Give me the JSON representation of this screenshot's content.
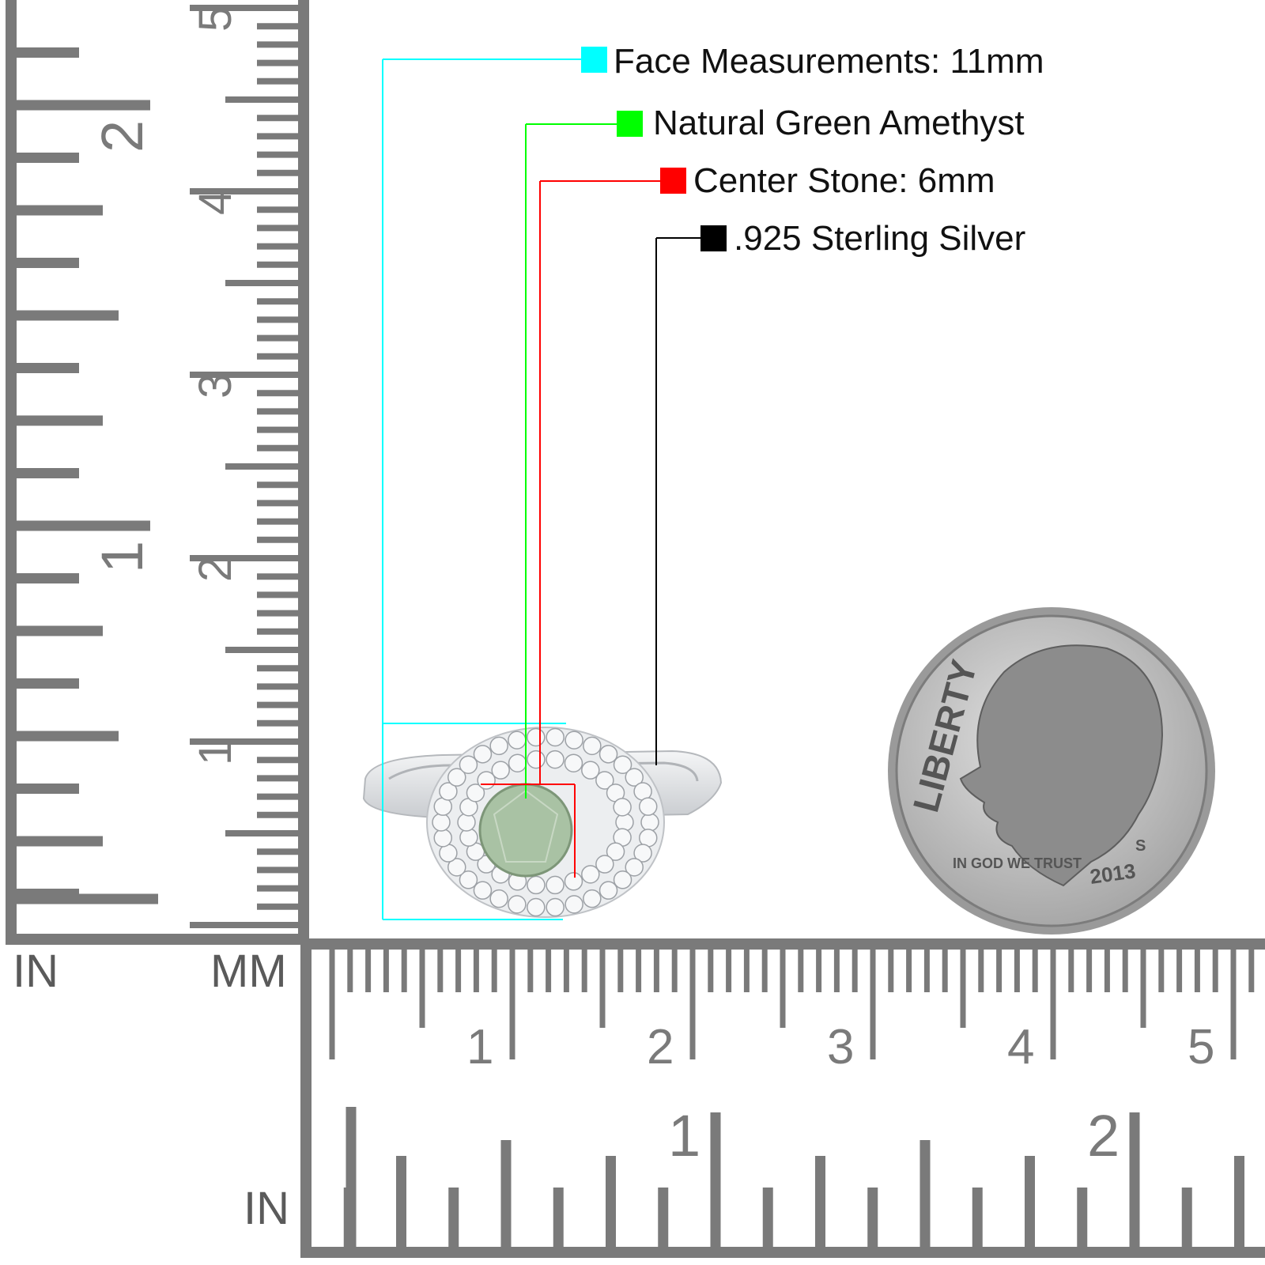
{
  "callouts": [
    {
      "label": "Face Measurements: 11mm",
      "color": "#00ffff"
    },
    {
      "label": "Natural Green Amethyst",
      "color": "#00ff00"
    },
    {
      "label": "Center Stone: 6mm",
      "color": "#ff0000"
    },
    {
      "label": ".925 Sterling Silver",
      "color": "#000000"
    }
  ],
  "rulers": {
    "left_inch_unit": "IN",
    "left_mm_unit": "MM",
    "bottom_inch_unit": "IN",
    "left_cm_labels": [
      "1",
      "2",
      "3",
      "4",
      "5"
    ],
    "left_inch_labels": [
      "1",
      "2"
    ],
    "bottom_cm_labels": [
      "1",
      "2",
      "3",
      "4",
      "5"
    ],
    "bottom_inch_labels": [
      "1",
      "2"
    ],
    "color": "#7a7a7a"
  },
  "coin": {
    "legend": "LIBERTY",
    "motto": "IN GOD WE TRUST",
    "year": "2013",
    "mint_mark": "S"
  },
  "ring": {
    "center_stone_color": "#a9c2a4",
    "metal_color": "#e4e6e8"
  }
}
